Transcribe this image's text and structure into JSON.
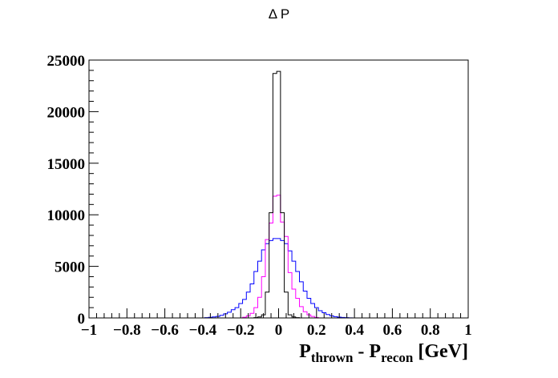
{
  "chart_data": {
    "type": "step-histogram",
    "title": "Δ P",
    "xlabel": {
      "parts": [
        {
          "text": "P",
          "sub": false
        },
        {
          "text": "thrown",
          "sub": true
        },
        {
          "text": " - P",
          "sub": false
        },
        {
          "text": "recon",
          "sub": true
        },
        {
          "text": " [GeV]",
          "sub": false
        }
      ]
    },
    "ylabel": "",
    "xlim": [
      -1,
      1
    ],
    "ylim": [
      0,
      25000
    ],
    "x_ticks": [
      {
        "value": -1,
        "label": "−1"
      },
      {
        "value": -0.8,
        "label": "−0.8"
      },
      {
        "value": -0.6,
        "label": "−0.6"
      },
      {
        "value": -0.4,
        "label": "−0.4"
      },
      {
        "value": -0.2,
        "label": "−0.2"
      },
      {
        "value": 0,
        "label": "0"
      },
      {
        "value": 0.2,
        "label": "0.2"
      },
      {
        "value": 0.4,
        "label": "0.4"
      },
      {
        "value": 0.6,
        "label": "0.6"
      },
      {
        "value": 0.8,
        "label": "0.8"
      },
      {
        "value": 1,
        "label": "1"
      }
    ],
    "y_ticks": [
      {
        "value": 0,
        "label": "0"
      },
      {
        "value": 5000,
        "label": "5000"
      },
      {
        "value": 10000,
        "label": "10000"
      },
      {
        "value": 15000,
        "label": "15000"
      },
      {
        "value": 20000,
        "label": "20000"
      },
      {
        "value": 25000,
        "label": "25000"
      }
    ],
    "grid": false,
    "bin_edges": [
      -0.12,
      -0.1,
      -0.08,
      -0.06,
      -0.04,
      -0.02,
      0,
      0.02,
      0.04,
      0.06,
      0.08,
      0.1,
      0.12
    ],
    "series": [
      {
        "color": "#0000ff",
        "x": [
          -0.4,
          -0.38,
          -0.36,
          -0.34,
          -0.32,
          -0.3,
          -0.28,
          -0.26,
          -0.24,
          -0.22,
          -0.2,
          -0.18,
          -0.16,
          -0.14,
          -0.12,
          -0.1,
          -0.08,
          -0.06,
          -0.04,
          -0.02,
          0,
          0.02,
          0.04,
          0.06,
          0.08,
          0.1,
          0.12,
          0.14,
          0.16,
          0.18,
          0.2,
          0.22,
          0.24,
          0.26,
          0.28,
          0.3,
          0.32,
          0.34,
          0.36,
          0.38,
          0.4
        ],
        "values": [
          0,
          30,
          60,
          100,
          150,
          250,
          400,
          550,
          800,
          1000,
          1400,
          1800,
          2500,
          3300,
          4500,
          5500,
          6600,
          7200,
          7500,
          7700,
          7700,
          7500,
          7200,
          6500,
          5500,
          4500,
          3500,
          2600,
          1900,
          1400,
          1000,
          700,
          500,
          330,
          200,
          130,
          80,
          50,
          30,
          10,
          0
        ]
      },
      {
        "color": "#ff00ff",
        "x": [
          -0.2,
          -0.18,
          -0.16,
          -0.14,
          -0.12,
          -0.1,
          -0.08,
          -0.06,
          -0.04,
          -0.02,
          0,
          0.02,
          0.04,
          0.06,
          0.08,
          0.1,
          0.12,
          0.14,
          0.16,
          0.18,
          0.2,
          0.22
        ],
        "values": [
          0,
          70,
          200,
          450,
          1000,
          2000,
          4000,
          7600,
          9200,
          11800,
          11900,
          9300,
          7900,
          4400,
          2800,
          1900,
          1100,
          600,
          300,
          150,
          50,
          0
        ]
      },
      {
        "color": "#000000",
        "x": [
          -0.12,
          -0.1,
          -0.08,
          -0.06,
          -0.04,
          -0.02,
          0,
          0.02,
          0.04,
          0.06,
          0.08,
          0.1
        ],
        "values": [
          30,
          100,
          300,
          2500,
          10200,
          23700,
          23900,
          10200,
          2500,
          300,
          100,
          30
        ]
      }
    ]
  }
}
